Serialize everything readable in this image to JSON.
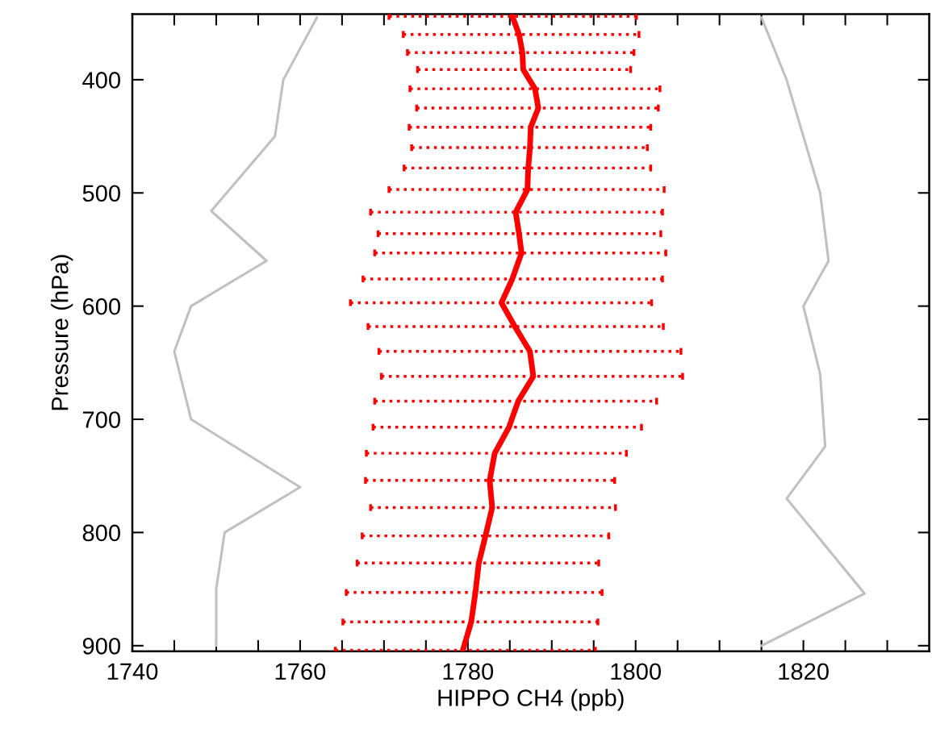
{
  "chart_data": {
    "type": "line",
    "xlabel": "HIPPO CH4 (ppb)",
    "ylabel": "Pressure (hPa)",
    "xlim": [
      1740,
      1835
    ],
    "ylim": [
      905,
      342
    ],
    "xticks": [
      1740,
      {
        "value": 1745,
        "label": null
      },
      {
        "value": 1750,
        "label": null
      },
      {
        "value": 1755,
        "label": null
      },
      1760,
      {
        "value": 1765,
        "label": null
      },
      {
        "value": 1770,
        "label": null
      },
      {
        "value": 1775,
        "label": null
      },
      1780,
      {
        "value": 1785,
        "label": null
      },
      {
        "value": 1790,
        "label": null
      },
      {
        "value": 1795,
        "label": null
      },
      1800,
      {
        "value": 1805,
        "label": null
      },
      {
        "value": 1810,
        "label": null
      },
      {
        "value": 1815,
        "label": null
      },
      1820,
      {
        "value": 1825,
        "label": null
      },
      {
        "value": 1830,
        "label": null
      }
    ],
    "yticks": [
      400,
      500,
      600,
      700,
      800,
      900
    ],
    "grid": false,
    "legend": false,
    "marker": "none",
    "series": [
      {
        "color": "#c0c0c0",
        "x": [
          1762,
          1758,
          1757,
          1749.4,
          1756,
          1747,
          1745,
          1747,
          1760,
          1751,
          1750,
          1750
        ],
        "values": [
          345,
          400,
          450,
          516,
          560,
          600,
          640,
          700,
          760,
          800,
          850,
          900
        ]
      },
      {
        "color": "#c0c0c0",
        "x": [
          1815,
          1818,
          1820,
          1822,
          1823,
          1820,
          1822,
          1822.6,
          1818,
          1827.3,
          1815
        ],
        "values": [
          345,
          400,
          450,
          500,
          560,
          600,
          660,
          724,
          770,
          854,
          900
        ]
      },
      {
        "color": "#ff0000",
        "line_style": "solid",
        "x": [
          1785.3,
          1786.1,
          1786.5,
          1786.6,
          1788.0,
          1788.4,
          1787.5,
          1787.4,
          1787.2,
          1787.1,
          1785.7,
          1786.1,
          1786.4,
          1785.3,
          1784.0,
          1785.6,
          1787.4,
          1787.8,
          1786.0,
          1784.9,
          1783.2,
          1782.6,
          1782.9,
          1782.1,
          1781.3,
          1780.9,
          1780.4,
          1779.4
        ],
        "values": [
          344,
          360,
          376,
          391,
          408,
          425,
          442,
          460,
          478,
          497,
          517,
          536,
          553,
          576,
          597,
          618,
          640,
          662,
          684,
          707,
          730,
          754,
          778,
          803,
          827,
          853,
          879,
          904
        ],
        "xerrors": [
          [
            1770.6,
            1800.1
          ],
          [
            1772.3,
            1800.4
          ],
          [
            1772.8,
            1799.8
          ],
          [
            1774.0,
            1799.4
          ],
          [
            1773.1,
            1802.9
          ],
          [
            1773.9,
            1802.7
          ],
          [
            1773.0,
            1801.8
          ],
          [
            1773.3,
            1801.4
          ],
          [
            1772.4,
            1801.8
          ],
          [
            1770.6,
            1803.4
          ],
          [
            1768.4,
            1803.2
          ],
          [
            1769.3,
            1803.0
          ],
          [
            1768.9,
            1803.6
          ],
          [
            1767.5,
            1803.2
          ],
          [
            1766.0,
            1801.9
          ],
          [
            1768.1,
            1803.3
          ],
          [
            1769.4,
            1805.4
          ],
          [
            1769.7,
            1805.6
          ],
          [
            1768.9,
            1802.5
          ],
          [
            1768.7,
            1800.7
          ],
          [
            1767.9,
            1798.9
          ],
          [
            1767.8,
            1797.5
          ],
          [
            1768.4,
            1797.6
          ],
          [
            1767.4,
            1796.8
          ],
          [
            1766.8,
            1795.6
          ],
          [
            1765.5,
            1796.0
          ],
          [
            1765.1,
            1795.5
          ],
          [
            1764.2,
            1795.2
          ]
        ]
      }
    ]
  }
}
